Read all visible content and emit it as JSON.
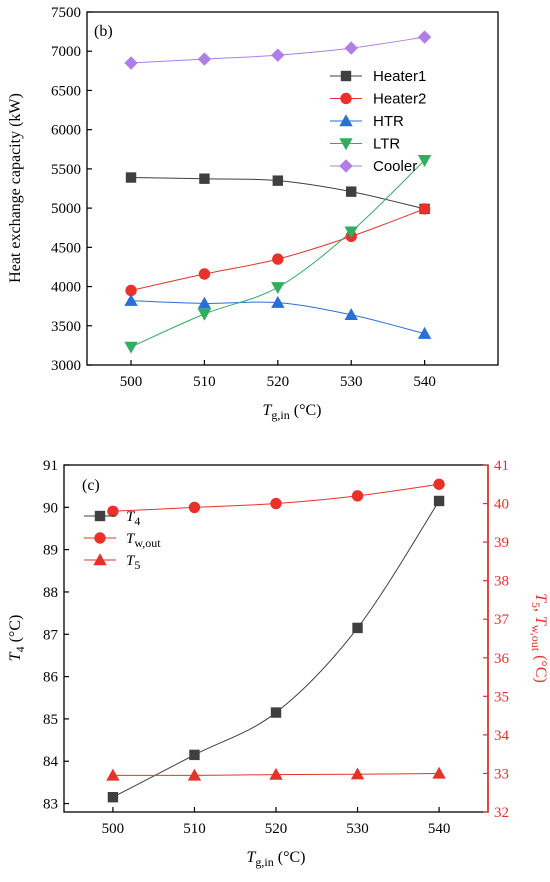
{
  "chart_data": [
    {
      "type": "line",
      "panel_label": "(b)",
      "x": [
        500,
        510,
        520,
        530,
        540
      ],
      "xlim": [
        494,
        550
      ],
      "ylim": [
        3000,
        7500
      ],
      "xlabel_main": "T",
      "xlabel_sub": "g,in",
      "xlabel_unit": " (°C)",
      "ylabel": "Heat exchange capacity (kW)",
      "xticks": [
        "500",
        "510",
        "520",
        "530",
        "540"
      ],
      "yticks": [
        "3000",
        "3500",
        "4000",
        "4500",
        "5000",
        "5500",
        "6000",
        "6500",
        "7000",
        "7500"
      ],
      "legend_position": "upper-right",
      "grid": false,
      "series": [
        {
          "name": "Heater1",
          "color": "#3f3f3f",
          "marker": "square",
          "values": [
            5390,
            5375,
            5350,
            5210,
            4990
          ]
        },
        {
          "name": "Heater2",
          "color": "#e8312a",
          "marker": "circle",
          "values": [
            3950,
            4160,
            4350,
            4640,
            4990
          ]
        },
        {
          "name": "HTR",
          "color": "#2a6fd6",
          "marker": "triangle-up",
          "values": [
            3820,
            3785,
            3795,
            3640,
            3400
          ]
        },
        {
          "name": "LTR",
          "color": "#2fae5e",
          "marker": "triangle-down",
          "values": [
            3230,
            3650,
            3990,
            4700,
            5610
          ]
        },
        {
          "name": "Cooler",
          "color": "#b07ee6",
          "marker": "diamond",
          "values": [
            6850,
            6900,
            6950,
            7040,
            7180
          ]
        }
      ]
    },
    {
      "type": "line",
      "panel_label": "(c)",
      "x": [
        500,
        510,
        520,
        530,
        540
      ],
      "xlim": [
        494,
        546
      ],
      "xlabel_main": "T",
      "xlabel_sub": "g,in",
      "xlabel_unit": " (°C)",
      "xticks": [
        "500",
        "510",
        "520",
        "530",
        "540"
      ],
      "left_axis": {
        "ylim": [
          82.8,
          91
        ],
        "ylabel_main": "T",
        "ylabel_sub": "4",
        "ylabel_unit": " (°C)",
        "yticks": [
          "83",
          "84",
          "85",
          "86",
          "87",
          "88",
          "89",
          "90",
          "91"
        ]
      },
      "right_axis": {
        "ylim": [
          32,
          41
        ],
        "ylabel_main1": "T",
        "ylabel_sub1": "5",
        "ylabel_sep": ", ",
        "ylabel_main2": "T",
        "ylabel_sub2": "w,out",
        "ylabel_unit": " (°C)",
        "yticks": [
          "32",
          "33",
          "34",
          "35",
          "36",
          "37",
          "38",
          "39",
          "40",
          "41"
        ],
        "color": "#e8312a"
      },
      "legend_position": "upper-left",
      "grid": false,
      "series": [
        {
          "name_main": "T",
          "name_sub": "4",
          "axis": "left",
          "color": "#3f3f3f",
          "marker": "square",
          "values": [
            83.15,
            84.15,
            85.15,
            87.15,
            90.15
          ]
        },
        {
          "name_main": "T",
          "name_sub": "w,out",
          "axis": "right",
          "color": "#e8312a",
          "marker": "circle",
          "values": [
            39.8,
            39.9,
            40.0,
            40.2,
            40.5
          ]
        },
        {
          "name_main": "T",
          "name_sub": "5",
          "axis": "right",
          "color": "#e8312a",
          "marker": "triangle-up",
          "values": [
            32.95,
            32.95,
            32.97,
            32.98,
            33.0
          ]
        }
      ]
    }
  ]
}
